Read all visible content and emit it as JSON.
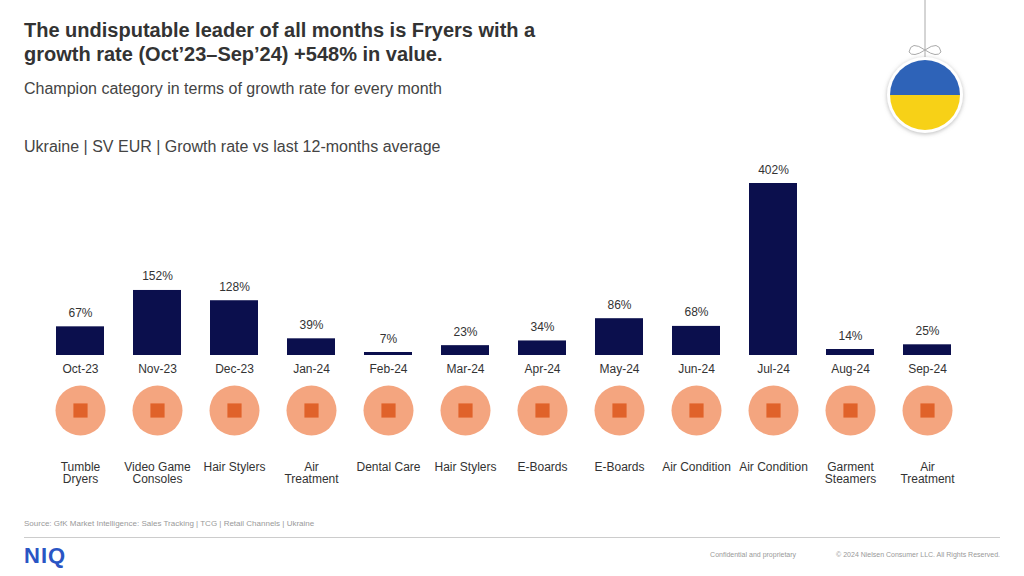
{
  "chart_data": {
    "type": "bar",
    "title": "The undisputable leader of all months is Fryers with a growth rate (Oct’23–Sep’24) +548% in value.",
    "subtitle": "Champion category in terms of growth rate for every month",
    "description": "Ukraine | SV EUR | Growth rate vs last 12-months average",
    "categories": [
      "Oct-23",
      "Nov-23",
      "Dec-23",
      "Jan-24",
      "Feb-24",
      "Mar-24",
      "Apr-24",
      "May-24",
      "Jun-24",
      "Jul-24",
      "Aug-24",
      "Sep-24"
    ],
    "values": [
      67,
      152,
      128,
      39,
      7,
      23,
      34,
      86,
      68,
      402,
      14,
      25
    ],
    "value_labels": [
      "67%",
      "152%",
      "128%",
      "39%",
      "7%",
      "23%",
      "34%",
      "86%",
      "68%",
      "402%",
      "14%",
      "25%"
    ],
    "annotations": [
      "Tumble Dryers",
      "Video Game Consoles",
      "Hair Stylers",
      "Air Treatment",
      "Dental Care",
      "Hair Stylers",
      "E-Boards",
      "E-Boards",
      "Air Condition",
      "Air Condition",
      "Garment Steamers",
      "Air Treatment"
    ],
    "color": "#0b0f4d",
    "ylim": [
      0,
      402
    ],
    "data_labels": true,
    "tick_labels": "x",
    "source": "Source: GfK Market Intelligence: Sales Tracking | TCG | Retail Channels | Ukraine",
    "logo": "NIQ",
    "footer": [
      "Confidential and proprietary",
      "© 2024 Nielsen Consumer LLC. All Rights Reserved."
    ]
  }
}
